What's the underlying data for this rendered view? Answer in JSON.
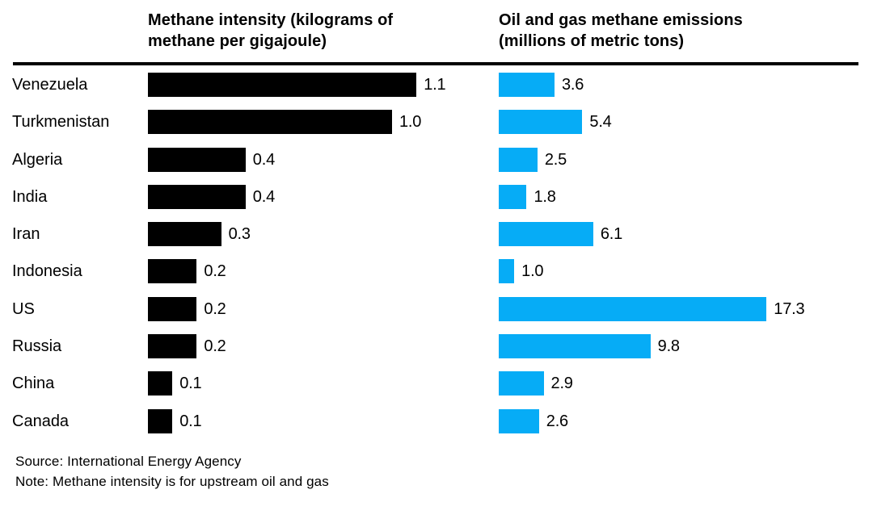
{
  "chart_data": {
    "type": "bar",
    "orientation": "horizontal",
    "grid": false,
    "legend_position": "column-headers",
    "categories": [
      "Venezuela",
      "Turkmenistan",
      "Algeria",
      "India",
      "Iran",
      "Indonesia",
      "US",
      "Russia",
      "China",
      "Canada"
    ],
    "series": [
      {
        "name": "Methane intensity (kilograms of methane per gigajoule)",
        "values": [
          1.1,
          1.0,
          0.4,
          0.4,
          0.3,
          0.2,
          0.2,
          0.2,
          0.1,
          0.1
        ],
        "value_labels": [
          "1.1",
          "1.0",
          "0.4",
          "0.4",
          "0.3",
          "0.2",
          "0.2",
          "0.2",
          "0.1",
          "0.1"
        ],
        "color": "#000000",
        "xlim": [
          0,
          1.45
        ]
      },
      {
        "name": "Oil and gas methane emissions (millions of metric tons)",
        "values": [
          3.6,
          5.4,
          2.5,
          1.8,
          6.1,
          1.0,
          17.3,
          9.8,
          2.9,
          2.6
        ],
        "value_labels": [
          "3.6",
          "5.4",
          "2.5",
          "1.8",
          "6.1",
          "1.0",
          "17.3",
          "9.8",
          "2.9",
          "2.6"
        ],
        "color": "#06acf6",
        "xlim": [
          0,
          22
        ]
      }
    ],
    "source": "Source: International Energy Agency",
    "note": "Note: Methane intensity is for upstream oil and gas"
  },
  "colors": {
    "background": "#ffffff",
    "text": "#000000",
    "rule": "#000000",
    "bar_left": "#000000",
    "bar_right": "#06acf6"
  }
}
